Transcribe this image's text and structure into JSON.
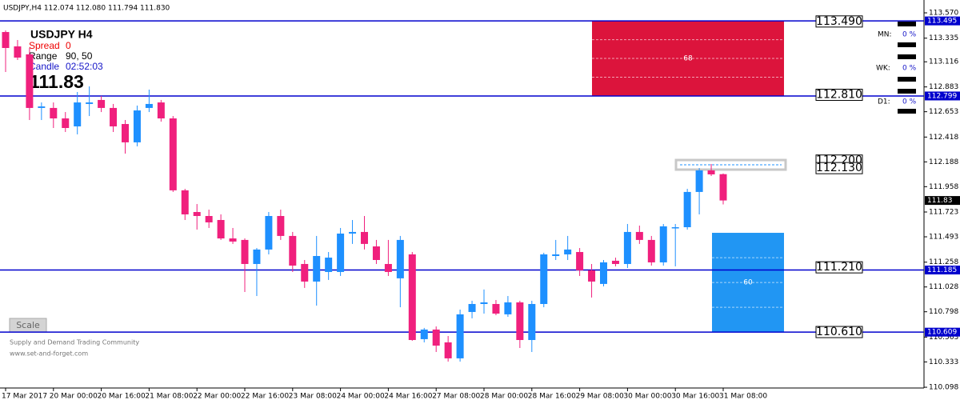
{
  "header": "USDJPY,H4  112.074 112.080 111.794 111.830",
  "info": {
    "symbol": "USDJPY   H4",
    "spread_label": "Spread",
    "spread": "0",
    "range_label": "Range",
    "range": "90, 50",
    "candle_label": "Candle",
    "candle": "02:52:03",
    "price": "111.83"
  },
  "strength": [
    {
      "name": "MN:",
      "value": "0 %"
    },
    {
      "name": "WK:",
      "value": "0 %"
    },
    {
      "name": "D1:",
      "value": "0 %"
    }
  ],
  "scale_button": "Scale",
  "footer": [
    "Supply and Demand Trading Community",
    "www.set-and-forget.com"
  ],
  "chart_data": {
    "type": "candlestick",
    "up_color": "#1e90ff",
    "down_color": "#f0207d",
    "categories": [
      "17 Mar 2017",
      null,
      null,
      null,
      "20 Mar 00:00",
      null,
      null,
      null,
      "20 Mar 16:00",
      null,
      null,
      null,
      "21 Mar 08:00",
      null,
      null,
      null,
      "22 Mar 00:00",
      null,
      null,
      null,
      "22 Mar 16:00",
      null,
      null,
      null,
      "23 Mar 08:00",
      null,
      null,
      null,
      "24 Mar 00:00",
      null,
      null,
      null,
      "24 Mar 16:00",
      null,
      null,
      null,
      "27 Mar 08:00",
      null,
      null,
      null,
      "28 Mar 00:00",
      null,
      null,
      null,
      "28 Mar 16:00",
      null,
      null,
      null,
      "29 Mar 08:00",
      null,
      null,
      null,
      "30 Mar 00:00",
      null,
      null,
      null,
      "30 Mar 16:00",
      null,
      null,
      null,
      "31 Mar 08:00"
    ],
    "open": [
      113.392,
      113.259,
      113.185,
      112.688,
      112.688,
      112.591,
      112.517,
      112.725,
      112.762,
      112.688,
      112.539,
      112.369,
      112.688,
      112.739,
      112.591,
      111.924,
      111.723,
      111.686,
      111.649,
      111.478,
      111.464,
      111.241,
      111.375,
      111.686,
      111.501,
      111.241,
      111.078,
      111.167,
      111.167,
      111.523,
      111.538,
      111.404,
      111.241,
      111.108,
      111.33,
      110.544,
      110.633,
      110.514,
      110.366,
      110.796,
      110.87,
      110.87,
      110.774,
      110.885,
      110.536,
      110.87,
      111.315,
      111.33,
      111.352,
      111.182,
      111.056,
      111.271,
      111.241,
      111.538,
      111.464,
      111.256,
      111.575,
      111.582,
      111.909,
      112.109,
      112.074
    ],
    "high": [
      113.407,
      113.318,
      113.244,
      112.739,
      112.739,
      112.65,
      112.836,
      112.888,
      112.799,
      112.725,
      112.576,
      112.71,
      112.858,
      112.762,
      112.613,
      111.938,
      111.797,
      111.745,
      111.701,
      111.575,
      111.478,
      111.389,
      111.723,
      111.745,
      111.538,
      111.278,
      111.501,
      111.352,
      111.575,
      111.649,
      111.686,
      111.464,
      111.464,
      111.501,
      111.352,
      110.648,
      110.662,
      110.573,
      110.818,
      110.9,
      111.004,
      110.907,
      110.944,
      110.9,
      110.9,
      111.345,
      111.464,
      111.501,
      111.389,
      111.241,
      111.278,
      111.3,
      111.612,
      111.597,
      111.501,
      111.612,
      111.612,
      111.938,
      112.131,
      112.168,
      112.08
    ],
    "low": [
      113.021,
      113.133,
      112.576,
      112.576,
      112.502,
      112.465,
      112.443,
      112.613,
      112.65,
      112.465,
      112.265,
      112.332,
      112.65,
      112.561,
      111.909,
      111.649,
      111.56,
      111.575,
      111.464,
      111.427,
      110.981,
      110.944,
      111.33,
      111.464,
      111.167,
      111.019,
      110.855,
      111.093,
      111.13,
      111.427,
      111.375,
      111.241,
      111.13,
      110.84,
      110.529,
      110.514,
      110.425,
      110.336,
      110.336,
      110.737,
      110.781,
      110.766,
      110.751,
      110.462,
      110.425,
      110.84,
      111.278,
      111.278,
      111.13,
      110.93,
      111.033,
      111.219,
      111.204,
      111.427,
      111.226,
      111.226,
      111.219,
      111.56,
      111.701,
      112.057,
      111.794
    ],
    "close": [
      113.244,
      113.155,
      112.688,
      112.702,
      112.591,
      112.502,
      112.739,
      112.739,
      112.688,
      112.517,
      112.369,
      112.665,
      112.725,
      112.591,
      111.924,
      111.701,
      111.686,
      111.627,
      111.478,
      111.449,
      111.241,
      111.375,
      111.686,
      111.501,
      111.226,
      111.078,
      111.315,
      111.3,
      111.523,
      111.538,
      111.427,
      111.278,
      111.167,
      111.464,
      110.536,
      110.633,
      110.484,
      110.366,
      110.774,
      110.87,
      110.885,
      110.781,
      110.885,
      110.536,
      110.87,
      111.33,
      111.33,
      111.375,
      111.182,
      111.078,
      111.256,
      111.241,
      111.538,
      111.464,
      111.256,
      111.59,
      111.582,
      111.909,
      112.109,
      112.072,
      111.83
    ],
    "ylim": [
      110.091,
      113.689
    ],
    "yticks": [
      {
        "value": 113.57,
        "label": "113.570"
      },
      113.335,
      113.116,
      112.883,
      112.653,
      112.418,
      112.188,
      111.958,
      111.723,
      111.493,
      111.258,
      111.028,
      110.798,
      110.563,
      110.333,
      110.098
    ],
    "levels": [
      {
        "value": 113.495,
        "color": "#0000cd"
      },
      {
        "value": 112.799,
        "color": "#0000cd"
      },
      {
        "value": 111.185,
        "color": "#0000cd"
      },
      {
        "value": 110.609,
        "color": "#0000cd"
      }
    ],
    "current_price": {
      "value": 111.83,
      "color": "#000000"
    },
    "zones": [
      {
        "top": 113.495,
        "bottom": 112.799,
        "label": "68",
        "color": "#dc143c"
      },
      {
        "top": 111.53,
        "bottom": 110.609,
        "label": "60",
        "color": "#2196f3"
      },
      {
        "top": 112.205,
        "bottom": 112.116,
        "color": "#c8c8c8"
      }
    ],
    "price_labels": [
      {
        "value": 113.49,
        "label": "113.490"
      },
      {
        "value": 112.81,
        "label": "112.810"
      },
      {
        "value": 112.2,
        "label": "112.200"
      },
      {
        "value": 112.13,
        "label": "112.130"
      },
      {
        "value": 111.21,
        "label": "111.210"
      },
      {
        "value": 110.61,
        "label": "110.610"
      }
    ]
  }
}
